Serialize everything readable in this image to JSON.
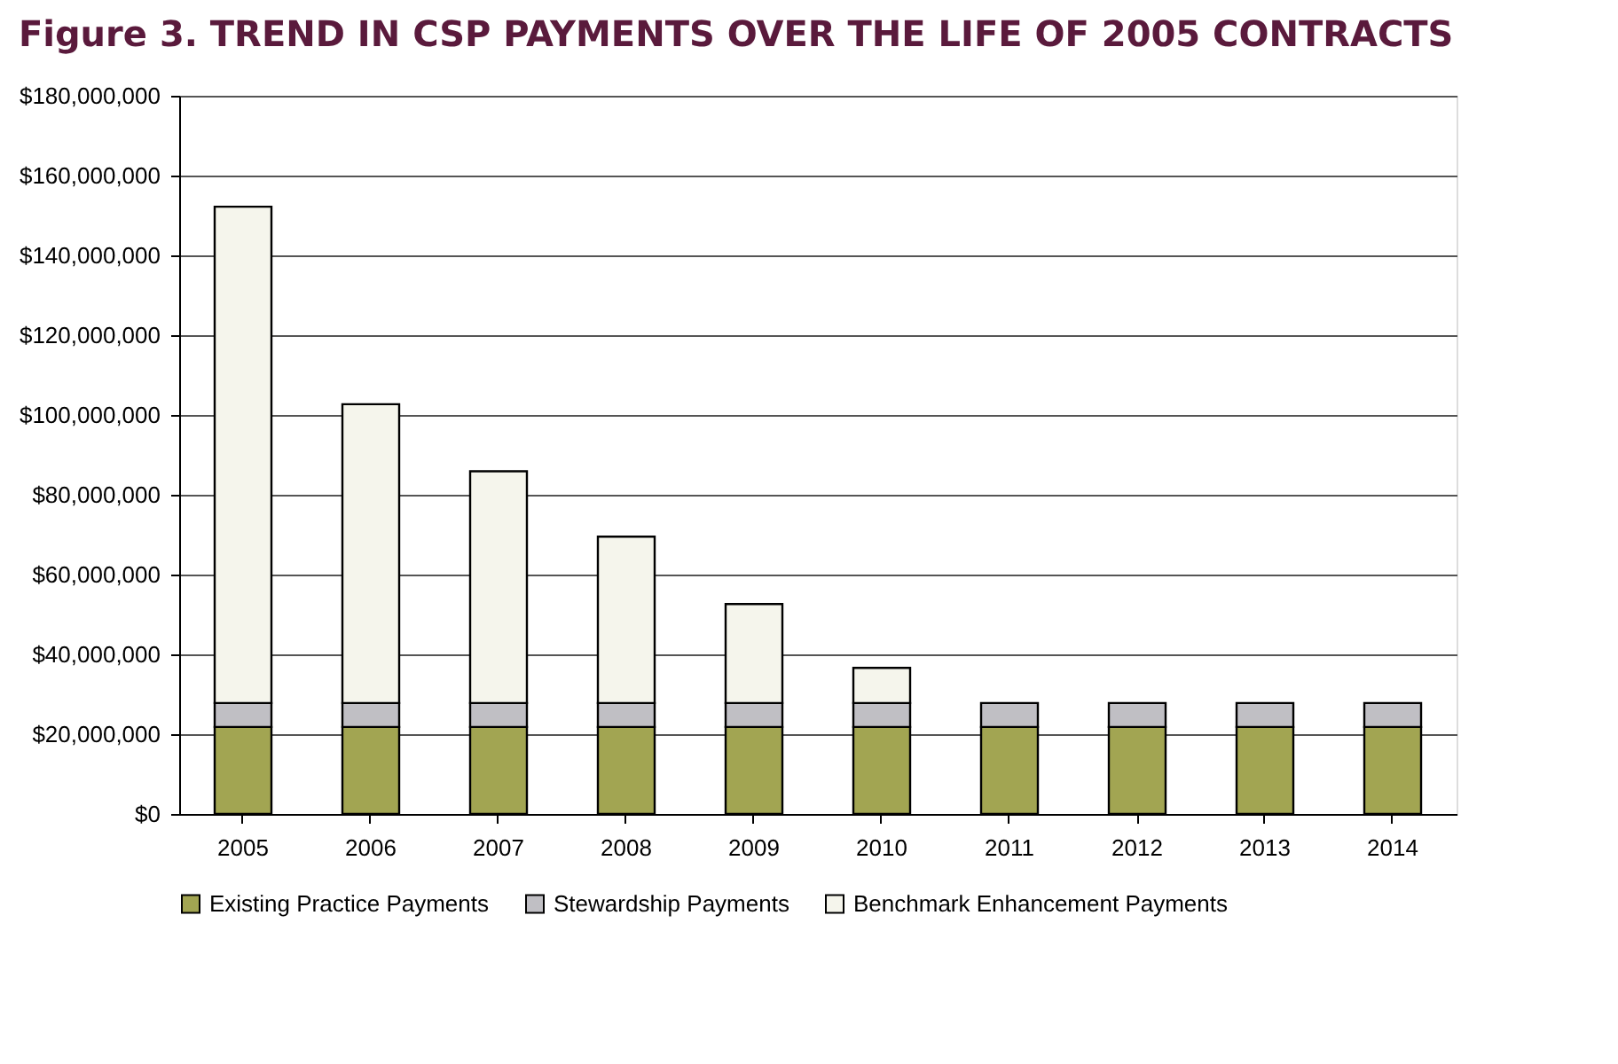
{
  "chart_data": {
    "type": "bar",
    "title": "Figure 3. TREND IN CSP PAYMENTS OVER THE LIFE OF 2005 CONTRACTS",
    "stacked": true,
    "categories": [
      "2005",
      "2006",
      "2007",
      "2008",
      "2009",
      "2010",
      "2011",
      "2012",
      "2013",
      "2014"
    ],
    "series": [
      {
        "name": "Existing Practice Payments",
        "color": "#a2a552",
        "values": [
          21800000,
          21800000,
          21800000,
          21800000,
          21800000,
          21800000,
          21800000,
          21800000,
          21800000,
          21800000
        ]
      },
      {
        "name": "Stewardship Payments",
        "color": "#c0bfc4",
        "values": [
          6000000,
          6000000,
          6000000,
          6000000,
          6000000,
          6000000,
          6000000,
          6000000,
          6000000,
          6000000
        ]
      },
      {
        "name": "Benchmark Enhancement Payments",
        "color": "#f5f5ec",
        "values": [
          124400000,
          74900000,
          58100000,
          41700000,
          24800000,
          8800000,
          null,
          null,
          null,
          null
        ]
      }
    ],
    "ylim": [
      0,
      180000000
    ],
    "yticks": [
      {
        "value": 0,
        "label": "$0"
      },
      {
        "value": 20000000,
        "label": "$20,000,000"
      },
      {
        "value": 40000000,
        "label": "$40,000,000"
      },
      {
        "value": 60000000,
        "label": "$60,000,000"
      },
      {
        "value": 80000000,
        "label": "$80,000,000"
      },
      {
        "value": 100000000,
        "label": "$100,000,000"
      },
      {
        "value": 120000000,
        "label": "$120,000,000"
      },
      {
        "value": 140000000,
        "label": "$140,000,000"
      },
      {
        "value": 160000000,
        "label": "$160,000,000"
      },
      {
        "value": 180000000,
        "label": "$180,000,000"
      }
    ],
    "grid": "y",
    "legend": "bottom"
  }
}
